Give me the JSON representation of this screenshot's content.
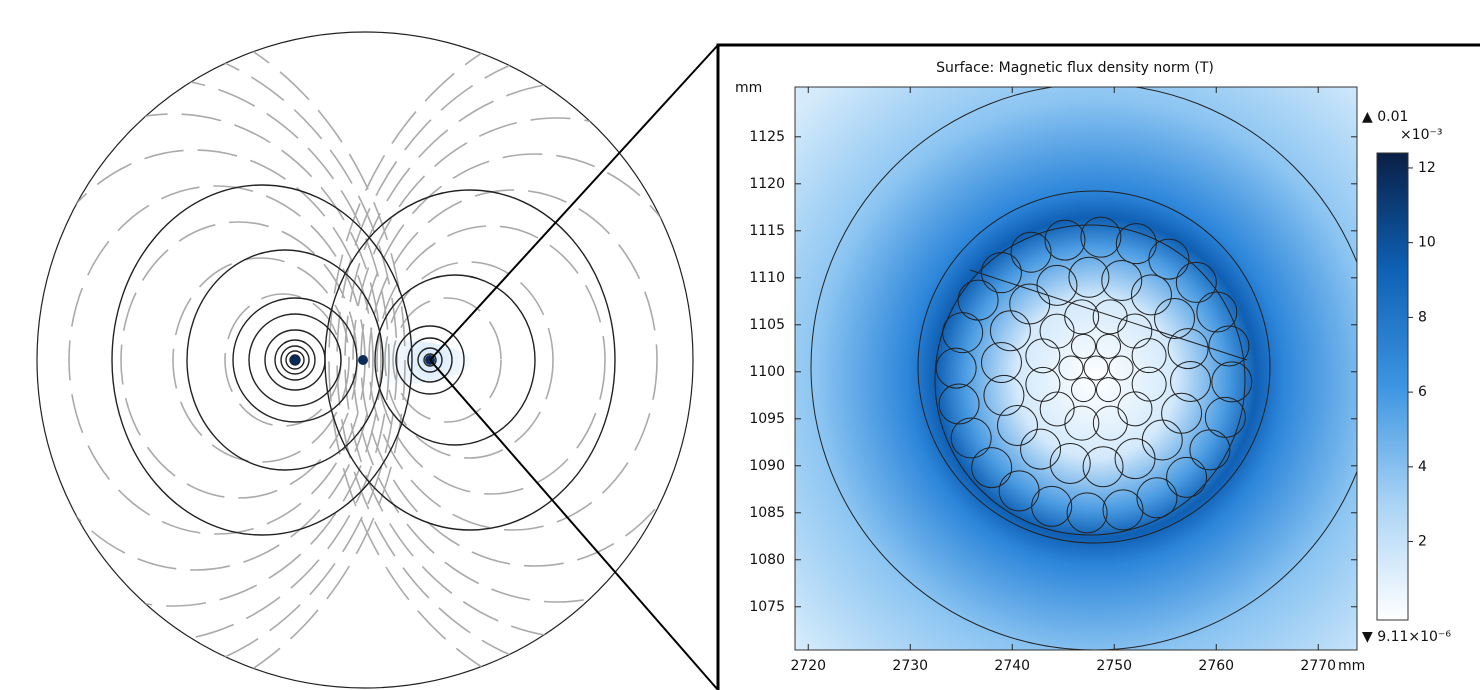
{
  "chart_data": {
    "type": "surface",
    "title": "Surface: Magnetic flux density norm (T)",
    "x_unit": "mm",
    "y_unit": "mm",
    "xlim": [
      2718.7,
      2773.8
    ],
    "xticks": [
      2720,
      2730,
      2740,
      2750,
      2760,
      2770
    ],
    "ylim": [
      1070.4,
      1130.3
    ],
    "yticks": [
      1075,
      1080,
      1085,
      1090,
      1095,
      1100,
      1105,
      1110,
      1115,
      1120,
      1125
    ],
    "colorbar": {
      "max_label": "▲ 0.01",
      "multiplier": "×10⁻³",
      "min_label": "▼ 9.11×10⁻⁶",
      "clim": [
        -0.1,
        12.4
      ],
      "ticks": [
        2,
        4,
        6,
        8,
        10,
        12
      ],
      "colormap": [
        "#ffffff",
        "#a9d3f5",
        "#3d95e1",
        "#0e61b5",
        "#0a1f45"
      ]
    }
  }
}
